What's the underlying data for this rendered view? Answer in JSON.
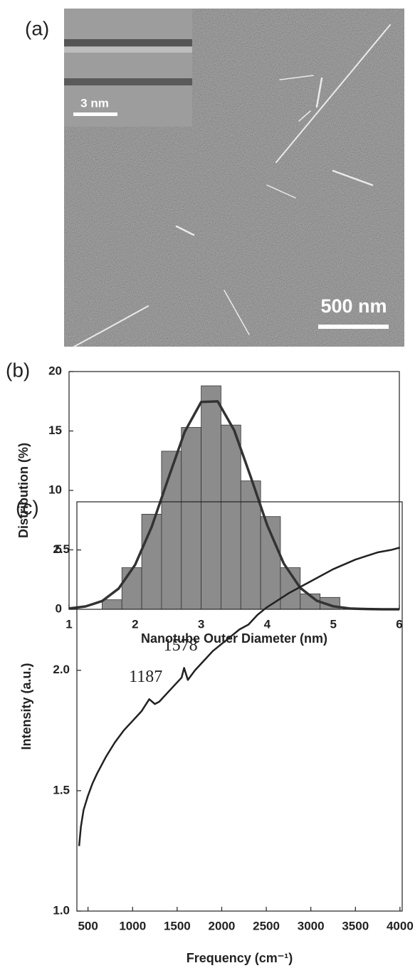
{
  "chart_data": [
    {
      "type": "image",
      "label": "(a)",
      "inset_scale_bar": "3 nm",
      "scale_bar": "500 nm"
    },
    {
      "type": "histogram",
      "label": "(b)",
      "x_label": "Nanotube Outer Diameter (nm)",
      "y_label": "Distribution (%)",
      "bins": [
        1.5,
        1.8,
        2.1,
        2.4,
        2.7,
        3.0,
        3.3,
        3.6,
        3.9,
        4.2,
        4.5,
        4.8,
        5.1
      ],
      "counts": [
        0.8,
        3.5,
        8.0,
        13.3,
        15.3,
        18.8,
        15.5,
        10.8,
        7.8,
        3.5,
        1.3,
        1.0
      ],
      "color": "#8c8c8c",
      "fit": {
        "x": [
          1,
          1.25,
          1.5,
          1.75,
          2,
          2.25,
          2.5,
          2.75,
          3,
          3.25,
          3.5,
          3.75,
          4,
          4.25,
          4.5,
          4.75,
          5,
          5.25,
          5.5,
          5.75,
          6
        ],
        "values": [
          0.07,
          0.24,
          0.69,
          1.74,
          3.74,
          6.92,
          10.97,
          14.92,
          17.44,
          17.49,
          15.06,
          11.14,
          7.07,
          3.85,
          1.8,
          0.72,
          0.25,
          0.07,
          0.02,
          0,
          0
        ],
        "color": "#333333"
      },
      "xlim": [
        1,
        6
      ],
      "xticks": [
        1,
        2,
        3,
        4,
        5,
        6
      ],
      "ylim": [
        0,
        20
      ],
      "yticks": [
        0,
        5,
        10,
        15,
        20
      ]
    },
    {
      "type": "line",
      "label": "(c)",
      "x_label": "Frequency (cm⁻¹)",
      "y_label": "Intensity (a.u.)",
      "x": [
        400,
        420,
        450,
        500,
        550,
        600,
        700,
        800,
        900,
        1000,
        1100,
        1187,
        1250,
        1300,
        1400,
        1500,
        1550,
        1578,
        1620,
        1700,
        1800,
        1900,
        2000,
        2100,
        2200,
        2300,
        2400,
        2500,
        2750,
        3000,
        3250,
        3500,
        3750,
        3900,
        4000
      ],
      "values": [
        1.27,
        1.35,
        1.42,
        1.48,
        1.53,
        1.57,
        1.64,
        1.7,
        1.75,
        1.79,
        1.83,
        1.88,
        1.86,
        1.87,
        1.91,
        1.95,
        1.97,
        2.01,
        1.96,
        2.0,
        2.04,
        2.08,
        2.11,
        2.14,
        2.17,
        2.19,
        2.23,
        2.26,
        2.32,
        2.37,
        2.42,
        2.46,
        2.49,
        2.5,
        2.51
      ],
      "color": "#222222",
      "xlim": [
        375,
        4025
      ],
      "xticks": [
        500,
        1000,
        1500,
        2000,
        2500,
        3000,
        3500,
        4000
      ],
      "ylim": [
        1.0,
        2.7
      ],
      "yticks": [
        {
          "value": 1.0,
          "label": "1.0"
        },
        {
          "value": 1.5,
          "label": "1.5"
        },
        {
          "value": 2.0,
          "label": "2.0"
        },
        {
          "value": 2.5,
          "label": "2.5"
        }
      ],
      "annotations": [
        {
          "text": "1187",
          "x": 1187,
          "y": 1.88
        },
        {
          "text": "1578",
          "x": 1578,
          "y": 2.01
        }
      ]
    }
  ]
}
